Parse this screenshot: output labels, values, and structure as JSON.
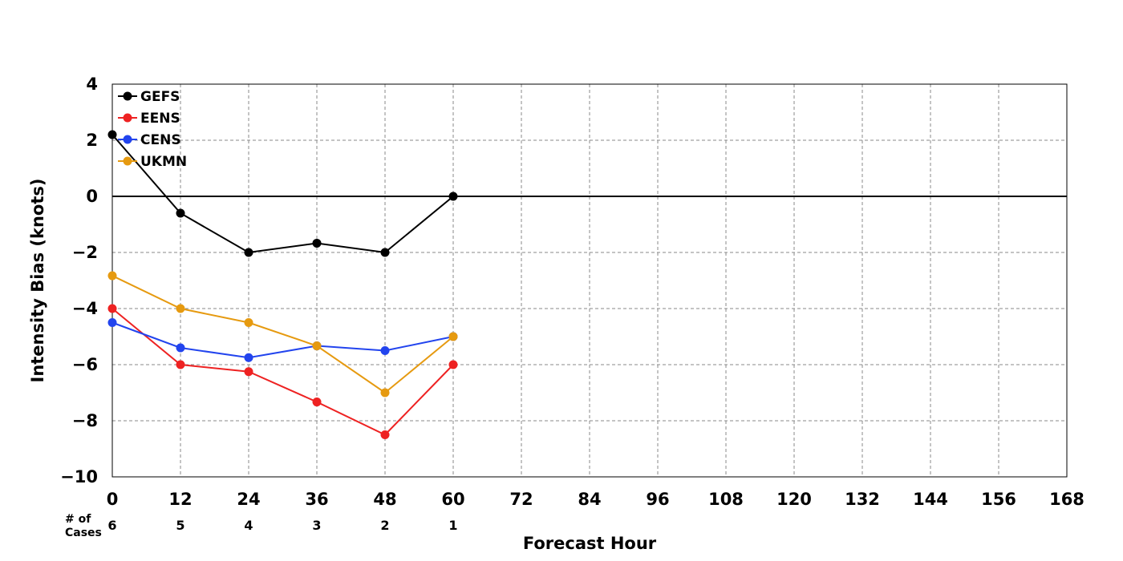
{
  "chart_data": {
    "type": "line",
    "title": "",
    "xlabel": "Forecast Hour",
    "ylabel": "Intensity Bias (knots)",
    "xlim": [
      0,
      168
    ],
    "ylim": [
      -10,
      4
    ],
    "x_ticks": [
      0,
      12,
      24,
      36,
      48,
      60,
      72,
      84,
      96,
      108,
      120,
      132,
      144,
      156,
      168
    ],
    "y_ticks": [
      4,
      2,
      0,
      -2,
      -4,
      -6,
      -8,
      -10
    ],
    "y_tick_labels": [
      "4",
      "2",
      "0",
      "−2",
      "−4",
      "−6",
      "−8",
      "−10"
    ],
    "grid": true,
    "zero_line": true,
    "legend_position": "top-left",
    "x": [
      0,
      12,
      24,
      36,
      48,
      60
    ],
    "series": [
      {
        "name": "GEFS",
        "color": "#000000",
        "values": [
          2.2,
          -0.6,
          -2.0,
          -1.67,
          -2.0,
          0.0
        ]
      },
      {
        "name": "EENS",
        "color": "#ee2222",
        "values": [
          -4.0,
          -6.0,
          -6.25,
          -7.33,
          -8.5,
          -6.0
        ]
      },
      {
        "name": "CENS",
        "color": "#2244ee",
        "values": [
          -4.5,
          -5.4,
          -5.75,
          -5.33,
          -5.5,
          -5.0
        ]
      },
      {
        "name": "UKMN",
        "color": "#e69a10",
        "values": [
          -2.83,
          -4.0,
          -4.5,
          -5.33,
          -7.0,
          -5.0
        ]
      }
    ],
    "cases": {
      "label_line1": "# of",
      "label_line2": "Cases",
      "x": [
        0,
        12,
        24,
        36,
        48,
        60
      ],
      "counts": [
        "6",
        "5",
        "4",
        "3",
        "2",
        "1"
      ]
    }
  }
}
